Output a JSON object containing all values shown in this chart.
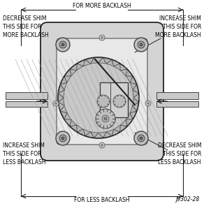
{
  "title": "",
  "fig_number": "J9302-28",
  "top_label": "FOR MORE BACKLASH",
  "bottom_label": "FOR LESS BACKLASH",
  "top_left_label": "DECREASE SHIM\nTHIS SIDE FOR\nMORE BACKLASH",
  "top_right_label": "INCREASE SHIM\nTHIS SIDE FOR\nMORE BACKLASH",
  "bottom_left_label": "INCREASE SHIM\nTHIS SIDE FOR\nLESS BACKLASH",
  "bottom_right_label": "DECREASE SHIM\nTHIS SIDE FOR\nLESS BACKLASH",
  "bg_color": "#ffffff",
  "text_color": "#000000",
  "line_color": "#000000",
  "font_size": 5.5,
  "fig_num_font_size": 5.5,
  "housing_color": "#cccccc",
  "gear_color": "#aaaaaa",
  "dark_line": "#222222"
}
